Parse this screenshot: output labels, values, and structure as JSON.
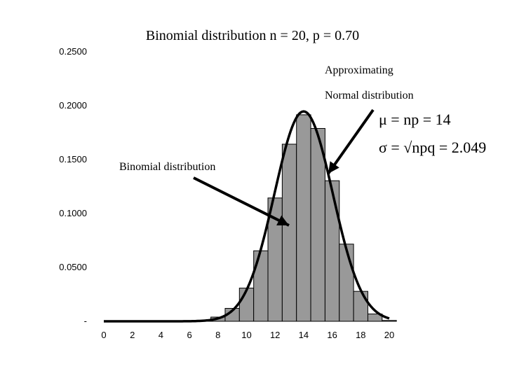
{
  "chart_data": {
    "type": "bar",
    "title": "Binomial distribution n = 20, p = 0.70",
    "x": [
      0,
      1,
      2,
      3,
      4,
      5,
      6,
      7,
      8,
      9,
      10,
      11,
      12,
      13,
      14,
      15,
      16,
      17,
      18,
      19,
      20
    ],
    "values": [
      0.0,
      0.0,
      0.0,
      0.0,
      0.0,
      0.0,
      0.0002,
      0.001,
      0.0039,
      0.012,
      0.0308,
      0.0654,
      0.1144,
      0.1643,
      0.1916,
      0.1789,
      0.1304,
      0.0716,
      0.0278,
      0.0068,
      0.0008
    ],
    "x_tick_labels": [
      "0",
      "2",
      "4",
      "6",
      "8",
      "10",
      "12",
      "14",
      "16",
      "18",
      "20"
    ],
    "y_tick_labels": [
      "-",
      "0.0500",
      "0.1000",
      "0.1500",
      "0.2000",
      "0.2500"
    ],
    "ylim": [
      0,
      0.25
    ],
    "xlim": [
      0,
      20
    ],
    "grid": false,
    "overlay_curve": {
      "type": "normal",
      "mean": 14,
      "sd": 2.049
    }
  },
  "annotations": {
    "approx_line1": "Approximating",
    "approx_line2": "Normal distribution",
    "binomial_label": "Binomial distribution",
    "mu_formula": "μ = np = 14",
    "sigma_formula": "σ = √npq = 2.049"
  },
  "colors": {
    "bar_fill": "#999999",
    "bar_stroke": "#000000",
    "curve": "#000000"
  }
}
